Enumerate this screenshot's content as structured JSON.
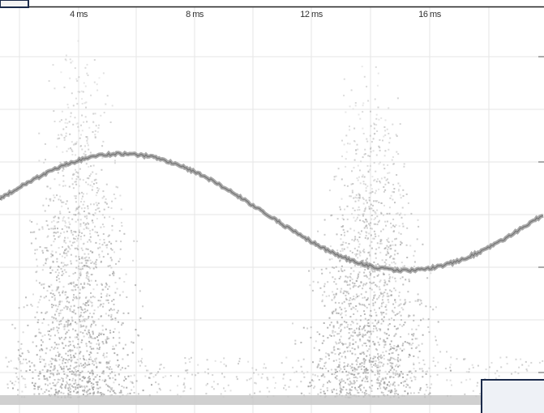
{
  "axis": {
    "x_tick_labels": [
      "4 ms",
      "8 ms",
      "12 ms",
      "16 ms"
    ]
  }
}
